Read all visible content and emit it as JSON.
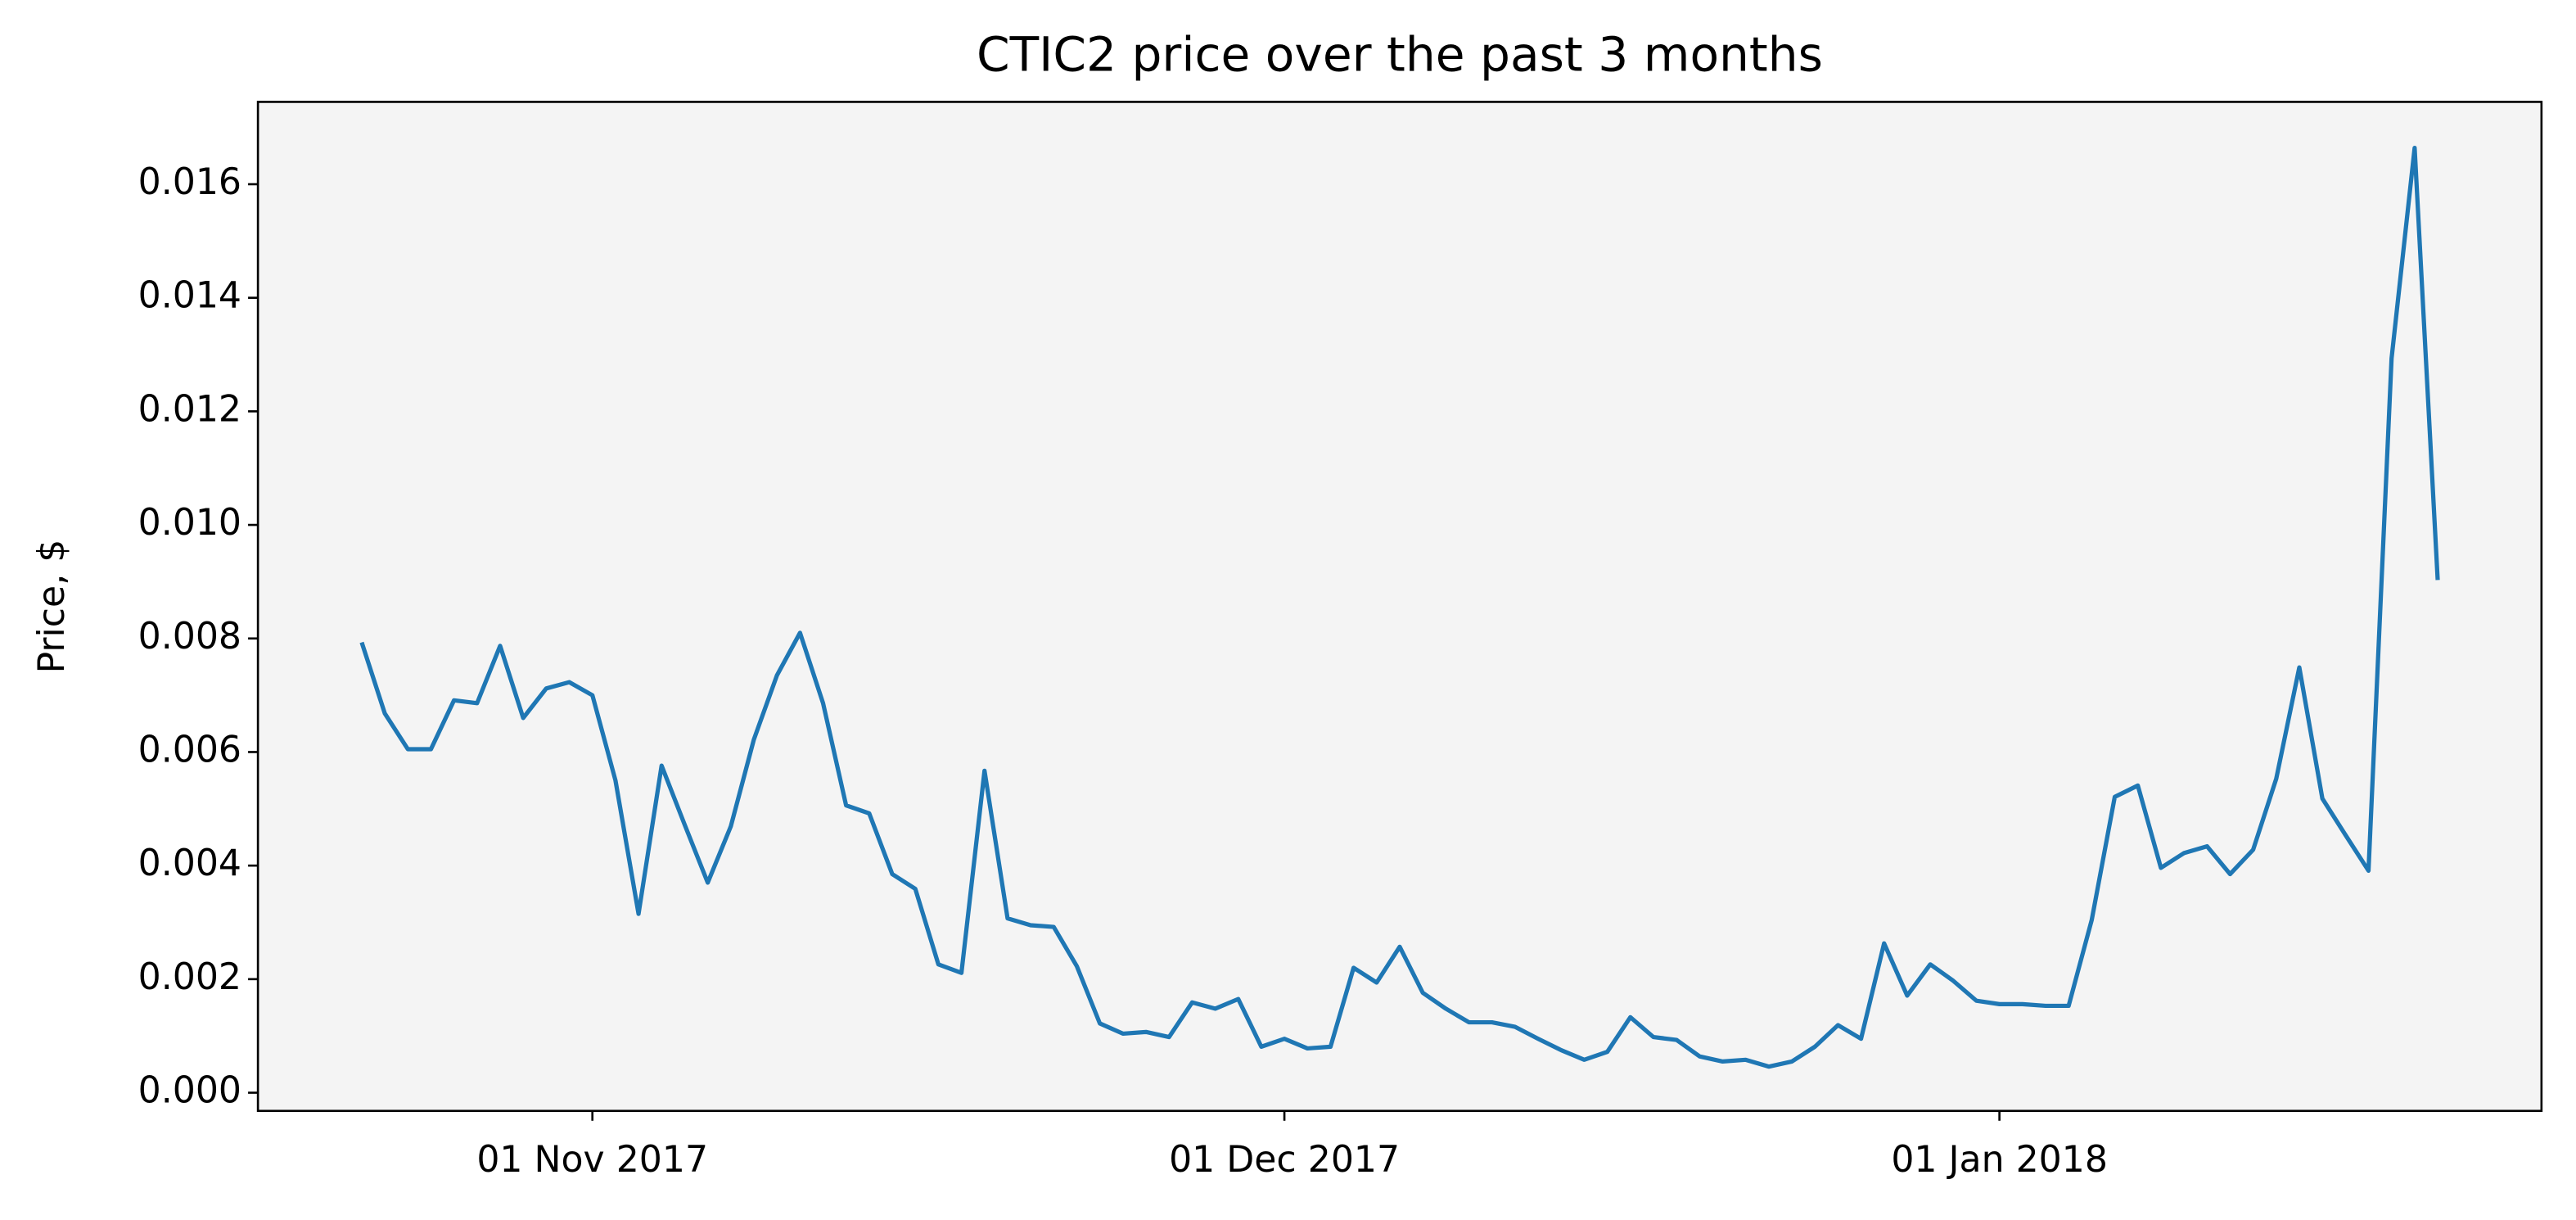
{
  "chart_data": {
    "type": "line",
    "title": "CTIC2 price over the past 3 months",
    "y_label": "Price, $",
    "x": [
      "2017-10-22",
      "2017-10-23",
      "2017-10-24",
      "2017-10-25",
      "2017-10-26",
      "2017-10-27",
      "2017-10-28",
      "2017-10-29",
      "2017-10-30",
      "2017-10-31",
      "2017-11-01",
      "2017-11-02",
      "2017-11-03",
      "2017-11-04",
      "2017-11-05",
      "2017-11-06",
      "2017-11-07",
      "2017-11-08",
      "2017-11-09",
      "2017-11-10",
      "2017-11-11",
      "2017-11-12",
      "2017-11-13",
      "2017-11-14",
      "2017-11-15",
      "2017-11-16",
      "2017-11-17",
      "2017-11-18",
      "2017-11-19",
      "2017-11-20",
      "2017-11-21",
      "2017-11-22",
      "2017-11-23",
      "2017-11-24",
      "2017-11-25",
      "2017-11-26",
      "2017-11-27",
      "2017-11-28",
      "2017-11-29",
      "2017-11-30",
      "2017-12-01",
      "2017-12-02",
      "2017-12-03",
      "2017-12-04",
      "2017-12-05",
      "2017-12-06",
      "2017-12-07",
      "2017-12-08",
      "2017-12-09",
      "2017-12-10",
      "2017-12-11",
      "2017-12-12",
      "2017-12-13",
      "2017-12-14",
      "2017-12-15",
      "2017-12-16",
      "2017-12-17",
      "2017-12-18",
      "2017-12-19",
      "2017-12-20",
      "2017-12-21",
      "2017-12-22",
      "2017-12-23",
      "2017-12-24",
      "2017-12-25",
      "2017-12-26",
      "2017-12-27",
      "2017-12-28",
      "2017-12-29",
      "2017-12-30",
      "2017-12-31",
      "2018-01-01",
      "2018-01-02",
      "2018-01-03",
      "2018-01-04",
      "2018-01-05",
      "2018-01-06",
      "2018-01-07",
      "2018-01-08",
      "2018-01-09",
      "2018-01-10",
      "2018-01-11",
      "2018-01-12",
      "2018-01-13",
      "2018-01-14",
      "2018-01-15",
      "2018-01-16",
      "2018-01-17",
      "2018-01-18",
      "2018-01-19",
      "2018-01-20"
    ],
    "series": [
      {
        "color": "#1f77b4",
        "values": [
          0.00793,
          0.00668,
          0.00605,
          0.00605,
          0.00691,
          0.00686,
          0.00787,
          0.0066,
          0.00712,
          0.00723,
          0.007,
          0.0055,
          0.00315,
          0.00576,
          0.00472,
          0.0037,
          0.00469,
          0.00622,
          0.00735,
          0.0081,
          0.00686,
          0.00506,
          0.00492,
          0.00385,
          0.00359,
          0.00226,
          0.00211,
          0.00567,
          0.00307,
          0.00295,
          0.00292,
          0.00223,
          0.00122,
          0.00104,
          0.00107,
          0.00098,
          0.00159,
          0.00148,
          0.00165,
          0.00081,
          0.00095,
          0.00078,
          0.00081,
          0.0022,
          0.00194,
          0.00257,
          0.00176,
          0.00148,
          0.00124,
          0.00124,
          0.00116,
          0.00095,
          0.00075,
          0.00058,
          0.00072,
          0.00133,
          0.00098,
          0.00093,
          0.00064,
          0.00055,
          0.00058,
          0.00046,
          0.00055,
          0.00081,
          0.00119,
          0.00095,
          0.00263,
          0.00171,
          0.00226,
          0.00197,
          0.00162,
          0.00156,
          0.00156,
          0.00153,
          0.00153,
          0.00304,
          0.00521,
          0.00541,
          0.00396,
          0.00422,
          0.00434,
          0.00385,
          0.00428,
          0.00553,
          0.00749,
          0.00518,
          0.00454,
          0.00391,
          0.01293,
          0.01664,
          0.00903
        ]
      }
    ],
    "xlim": [
      "2017-10-17T12:00:00Z",
      "2018-01-24T12:00:00Z"
    ],
    "xticks": [
      {
        "value": "2017-11-01",
        "label": "01 Nov 2017"
      },
      {
        "value": "2017-12-01",
        "label": "01 Dec 2017"
      },
      {
        "value": "2018-01-01",
        "label": "01 Jan 2018"
      }
    ],
    "ylim": [
      -0.00032,
      0.01745
    ],
    "yticks": [
      {
        "value": 0,
        "label": "0.000"
      },
      {
        "value": 0.002,
        "label": "0.002"
      },
      {
        "value": 0.004,
        "label": "0.004"
      },
      {
        "value": 0.006,
        "label": "0.006"
      },
      {
        "value": 0.008,
        "label": "0.008"
      },
      {
        "value": 0.01,
        "label": "0.010"
      },
      {
        "value": 0.012,
        "label": "0.012"
      },
      {
        "value": 0.014,
        "label": "0.014"
      },
      {
        "value": 0.016,
        "label": "0.016"
      }
    ],
    "plot_background": "#f4f4f4"
  }
}
